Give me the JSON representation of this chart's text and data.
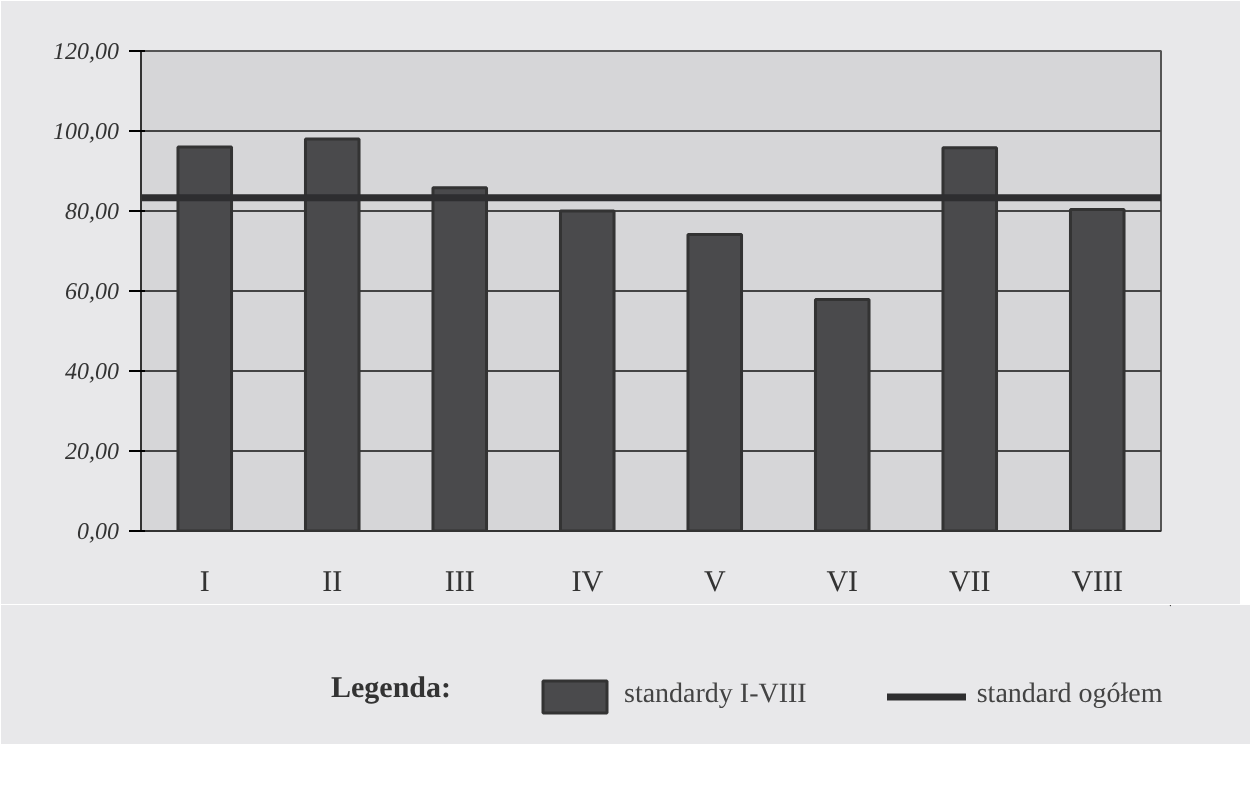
{
  "chart_data": {
    "type": "bar",
    "categories": [
      "I",
      "II",
      "III",
      "IV",
      "V",
      "VI",
      "VII",
      "VIII"
    ],
    "series": [
      {
        "name": "standardy I-VIII",
        "color": "#4a4a4c",
        "values": [
          96.0,
          98.0,
          85.8,
          80.0,
          74.1,
          57.9,
          95.8,
          80.4
        ]
      }
    ],
    "ylim": [
      0,
      120
    ],
    "yticks": [
      {
        "value": 0,
        "label": "0,00"
      },
      {
        "value": 20,
        "label": "20,00"
      },
      {
        "value": 40,
        "label": "40,00"
      },
      {
        "value": 60,
        "label": "60,00"
      },
      {
        "value": 80,
        "label": "80,00"
      },
      {
        "value": 100,
        "label": "100,00"
      },
      {
        "value": 120,
        "label": "120,00"
      }
    ],
    "ref_lines": [
      {
        "axis": "y",
        "value": 83.3,
        "label": "standard ogółem",
        "color": "#2e2e30",
        "line_style": "solid"
      }
    ],
    "grid": "y",
    "legend": "bottom",
    "legend_title": "Legenda:"
  }
}
